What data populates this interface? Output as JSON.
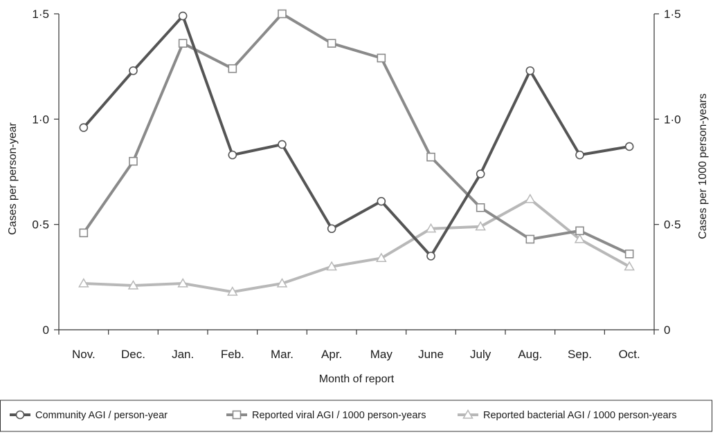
{
  "chart_data": {
    "type": "line",
    "xlabel": "Month of report",
    "ylabel_left": "Cases per person-year",
    "ylabel_right": "Cases per 1000 person-years",
    "categories": [
      "Nov.",
      "Dec.",
      "Jan.",
      "Feb.",
      "Mar.",
      "Apr.",
      "May",
      "June",
      "July",
      "Aug.",
      "Sep.",
      "Oct."
    ],
    "y_ticks": [
      "0",
      "0·5",
      "1·0",
      "1·5"
    ],
    "y_tick_values": [
      0,
      0.5,
      1.0,
      1.5
    ],
    "ylim": [
      0,
      1.5
    ],
    "grid": false,
    "legend_position": "bottom",
    "series": [
      {
        "name": "Community AGI / person-year",
        "axis": "left",
        "marker": "circle",
        "color": "#555555",
        "values": [
          0.96,
          1.23,
          1.49,
          0.83,
          0.88,
          0.48,
          0.61,
          0.35,
          0.74,
          1.23,
          0.83,
          0.87
        ]
      },
      {
        "name": "Reported viral AGI / 1000 person-years",
        "axis": "right",
        "marker": "square",
        "color": "#8a8a8a",
        "values": [
          0.46,
          0.8,
          1.36,
          1.24,
          1.5,
          1.36,
          1.29,
          0.82,
          0.58,
          0.43,
          0.47,
          0.36
        ]
      },
      {
        "name": "Reported bacterial AGI / 1000 person-years",
        "axis": "right",
        "marker": "triangle",
        "color": "#b8b8b8",
        "values": [
          0.22,
          0.21,
          0.22,
          0.18,
          0.22,
          0.3,
          0.34,
          0.48,
          0.49,
          0.62,
          0.43,
          0.3
        ]
      }
    ]
  }
}
